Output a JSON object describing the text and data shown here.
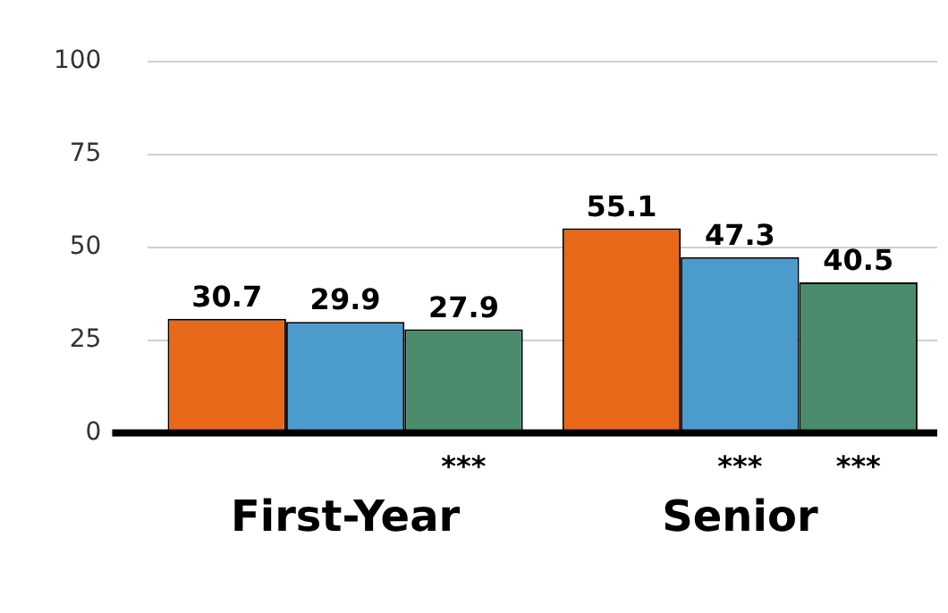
{
  "chart_data": {
    "type": "bar",
    "categories": [
      "First-Year",
      "Senior"
    ],
    "series": [
      {
        "color": "#e8681a",
        "values": [
          30.7,
          55.1
        ]
      },
      {
        "color": "#4b9ccd",
        "values": [
          29.9,
          47.3
        ]
      },
      {
        "color": "#4a8c6b",
        "values": [
          27.9,
          40.5
        ]
      }
    ],
    "ylim": [
      0,
      100
    ],
    "yticks": [
      0,
      25,
      50,
      75,
      100
    ],
    "grid": "y",
    "legend": false,
    "data_labels": true,
    "annotations": [
      "***",
      "***",
      "***"
    ]
  }
}
